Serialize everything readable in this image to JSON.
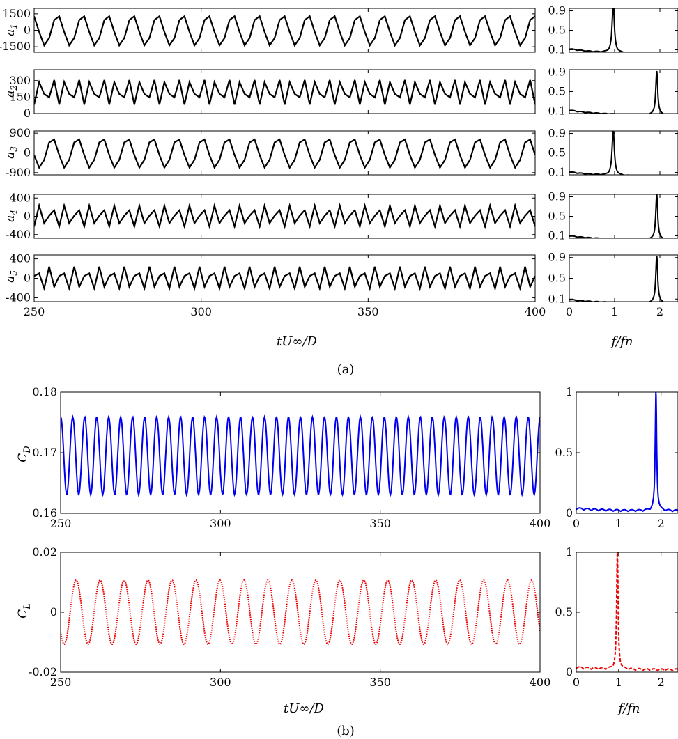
{
  "figure": {
    "caption_a": "(a)",
    "caption_b": "(b)",
    "time_xlabel": "tU∞/D",
    "freq_xlabel": "f/fn"
  },
  "chart_data": [
    {
      "id": "a1-time",
      "type": "line",
      "ylabel": "a1",
      "xlim": [
        250,
        400
      ],
      "ylim": [
        -2000,
        2000
      ],
      "yticks": [
        1500,
        0,
        -1500
      ],
      "ytick_labels": [
        "1500",
        "0",
        "-1500"
      ],
      "xticks": [
        250,
        300,
        350,
        400
      ],
      "show_xtick_labels": false,
      "series": [
        {
          "amplitude": 1400,
          "frequency": 0.13333,
          "phase": -0.1,
          "sampling_dt": 1.5,
          "color": "#000000"
        }
      ]
    },
    {
      "id": "a2-time",
      "type": "line",
      "ylabel": "a2",
      "xlim": [
        250,
        400
      ],
      "ylim": [
        0,
        400
      ],
      "yticks": [
        300,
        150,
        0
      ],
      "ytick_labels": [
        "300",
        "150",
        "0"
      ],
      "xticks": [
        250,
        300,
        350,
        400
      ],
      "show_xtick_labels": false,
      "series": [
        {
          "mean": 200,
          "amplitude": 120,
          "frequency": 0.26666,
          "phase": 0.4,
          "sampling_dt": 1.5,
          "color": "#000000"
        }
      ]
    },
    {
      "id": "a3-time",
      "type": "line",
      "ylabel": "a3",
      "xlim": [
        250,
        400
      ],
      "ylim": [
        -1000,
        1000
      ],
      "yticks": [
        900,
        0,
        -900
      ],
      "ytick_labels": [
        "900",
        "0",
        "-900"
      ],
      "xticks": [
        250,
        300,
        350,
        400
      ],
      "show_xtick_labels": false,
      "series": [
        {
          "amplitude": 680,
          "frequency": 0.13333,
          "phase": 1.2,
          "sampling_dt": 1.5,
          "color": "#000000"
        }
      ]
    },
    {
      "id": "a4-time",
      "type": "line",
      "ylabel": "a4",
      "xlim": [
        250,
        400
      ],
      "ylim": [
        -480,
        480
      ],
      "yticks": [
        400,
        0,
        -400
      ],
      "ytick_labels": [
        "400",
        "0",
        "-400"
      ],
      "xticks": [
        250,
        300,
        350,
        400
      ],
      "show_xtick_labels": false,
      "series": [
        {
          "amplitude": 240,
          "frequency": 0.26666,
          "phase": 0.9,
          "sampling_dt": 1.5,
          "color": "#000000"
        }
      ]
    },
    {
      "id": "a5-time",
      "type": "line",
      "ylabel": "a5",
      "xlim": [
        250,
        400
      ],
      "ylim": [
        -480,
        480
      ],
      "yticks": [
        400,
        0,
        -400
      ],
      "ytick_labels": [
        "400",
        "0",
        "-400"
      ],
      "xticks": [
        250,
        300,
        350,
        400
      ],
      "xtick_labels": [
        "250",
        "300",
        "350",
        "400"
      ],
      "show_xtick_labels": true,
      "series": [
        {
          "amplitude": 240,
          "frequency": 0.26666,
          "phase": 2.3,
          "sampling_dt": 1.5,
          "color": "#000000"
        }
      ]
    },
    {
      "id": "a1-spectrum",
      "type": "line",
      "xlim": [
        0,
        2.4
      ],
      "ylim": [
        0.05,
        0.95
      ],
      "yticks": [
        0.9,
        0.5,
        0.1
      ],
      "ytick_labels": [
        "0.9",
        "0.5",
        "0.1"
      ],
      "xticks": [
        0,
        1,
        2
      ],
      "show_xtick_labels": false,
      "series": [
        {
          "peak_at": 0.97,
          "peak_height": 1.0,
          "peak_width": 0.03,
          "baseline": 0.1,
          "color": "#000000"
        }
      ]
    },
    {
      "id": "a2-spectrum",
      "type": "line",
      "xlim": [
        0,
        2.4
      ],
      "ylim": [
        0.05,
        0.95
      ],
      "yticks": [
        0.9,
        0.5,
        0.1
      ],
      "ytick_labels": [
        "0.9",
        "0.5",
        "0.1"
      ],
      "xticks": [
        0,
        1,
        2
      ],
      "show_xtick_labels": false,
      "series": [
        {
          "peak_at": 1.93,
          "peak_height": 0.92,
          "peak_width": 0.025,
          "baseline": 0.1,
          "color": "#000000"
        }
      ]
    },
    {
      "id": "a3-spectrum",
      "type": "line",
      "xlim": [
        0,
        2.4
      ],
      "ylim": [
        0.05,
        0.95
      ],
      "yticks": [
        0.9,
        0.5,
        0.1
      ],
      "ytick_labels": [
        "0.9",
        "0.5",
        "0.1"
      ],
      "xticks": [
        0,
        1,
        2
      ],
      "show_xtick_labels": false,
      "series": [
        {
          "peak_at": 0.97,
          "peak_height": 0.93,
          "peak_width": 0.03,
          "baseline": 0.09,
          "color": "#000000"
        }
      ]
    },
    {
      "id": "a4-spectrum",
      "type": "line",
      "xlim": [
        0,
        2.4
      ],
      "ylim": [
        0.05,
        0.95
      ],
      "yticks": [
        0.9,
        0.5,
        0.1
      ],
      "ytick_labels": [
        "0.9",
        "0.5",
        "0.1"
      ],
      "xticks": [
        0,
        1,
        2
      ],
      "show_xtick_labels": false,
      "series": [
        {
          "peak_at": 1.93,
          "peak_height": 0.95,
          "peak_width": 0.025,
          "baseline": 0.08,
          "color": "#000000"
        }
      ]
    },
    {
      "id": "a5-spectrum",
      "type": "line",
      "xlim": [
        0,
        2.4
      ],
      "ylim": [
        0.05,
        0.95
      ],
      "yticks": [
        0.9,
        0.5,
        0.1
      ],
      "ytick_labels": [
        "0.9",
        "0.5",
        "0.1"
      ],
      "xticks": [
        0,
        1,
        2
      ],
      "xtick_labels": [
        "0",
        "1",
        "2"
      ],
      "show_xtick_labels": true,
      "series": [
        {
          "peak_at": 1.93,
          "peak_height": 0.93,
          "peak_width": 0.025,
          "baseline": 0.07,
          "color": "#000000"
        }
      ]
    },
    {
      "id": "cd-time",
      "type": "line",
      "ylabel": "CD",
      "xlim": [
        250,
        400
      ],
      "ylim": [
        0.16,
        0.18
      ],
      "yticks": [
        0.18,
        0.17,
        0.16
      ],
      "ytick_labels": [
        "0.18",
        "0.17",
        "0.16"
      ],
      "xticks": [
        250,
        300,
        350,
        400
      ],
      "xtick_labels": [
        "250",
        "300",
        "350",
        "400"
      ],
      "show_xtick_labels": true,
      "series": [
        {
          "mean": 0.1695,
          "amplitude": 0.0064,
          "frequency": 0.26666,
          "phase": 3.6,
          "sampling_dt": 0.2,
          "color": "#0000ee",
          "dash": "none"
        }
      ]
    },
    {
      "id": "cd-spectrum",
      "type": "line",
      "xlim": [
        0,
        2.4
      ],
      "ylim": [
        0,
        1
      ],
      "yticks": [
        1,
        0.5,
        0
      ],
      "ytick_labels": [
        "1",
        "0.5",
        "0"
      ],
      "xticks": [
        0,
        1,
        2
      ],
      "xtick_labels": [
        "0",
        "1",
        "2"
      ],
      "show_xtick_labels": true,
      "series": [
        {
          "peak_at": 1.88,
          "peak_height": 1.0,
          "peak_width": 0.02,
          "baseline": 0.02,
          "color": "#0000ee",
          "dash": "none"
        }
      ]
    },
    {
      "id": "cl-time",
      "type": "line",
      "ylabel": "CL",
      "xlim": [
        250,
        400
      ],
      "ylim": [
        -0.02,
        0.02
      ],
      "yticks": [
        0.02,
        0,
        -0.02
      ],
      "ytick_labels": [
        "0.02",
        "0",
        "-0.02"
      ],
      "xticks": [
        250,
        300,
        350,
        400
      ],
      "xtick_labels": [
        "250",
        "300",
        "350",
        "400"
      ],
      "show_xtick_labels": true,
      "series": [
        {
          "mean": 0,
          "amplitude": 0.0107,
          "frequency": 0.13333,
          "phase": 1.7,
          "sampling_dt": 0.2,
          "color": "#ee0000",
          "dash": "dotted"
        }
      ]
    },
    {
      "id": "cl-spectrum",
      "type": "line",
      "xlim": [
        0,
        2.4
      ],
      "ylim": [
        0,
        1
      ],
      "yticks": [
        1,
        0.5,
        0
      ],
      "ytick_labels": [
        "1",
        "0.5",
        "0"
      ],
      "xticks": [
        0,
        1,
        2
      ],
      "xtick_labels": [
        "0",
        "1",
        "2"
      ],
      "show_xtick_labels": true,
      "series": [
        {
          "peak_at": 0.97,
          "peak_height": 1.0,
          "peak_width": 0.02,
          "baseline": 0.02,
          "color": "#ee0000",
          "dash": "dashed"
        }
      ]
    }
  ]
}
